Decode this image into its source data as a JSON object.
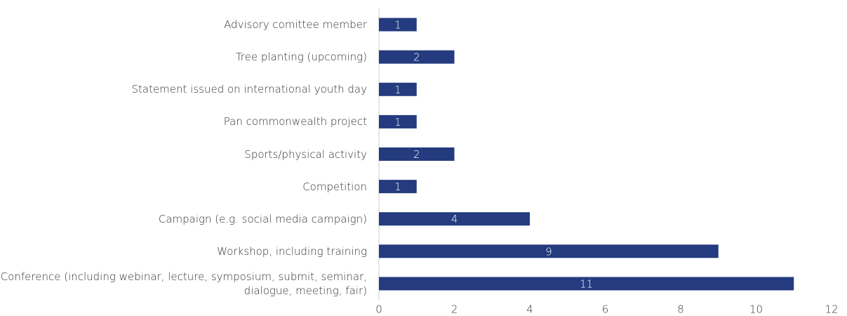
{
  "chart_data": {
    "type": "bar",
    "orientation": "horizontal",
    "categories": [
      "Advisory comittee member",
      "Tree planting (upcoming)",
      "Statement issued on international youth day",
      "Pan commonwealth project",
      "Sports/physical activity",
      "Competition",
      "Campaign (e.g. social media campaign)",
      "Workshop, including training",
      "Conference (including webinar, lecture, symposium, submit, seminar, dialogue, meeting, fair)"
    ],
    "values": [
      1,
      2,
      1,
      1,
      2,
      1,
      4,
      9,
      11
    ],
    "color": "#243b7f",
    "xlim": [
      0,
      12
    ],
    "xticks": [
      0,
      2,
      4,
      6,
      8,
      10,
      12
    ],
    "grid": false
  }
}
